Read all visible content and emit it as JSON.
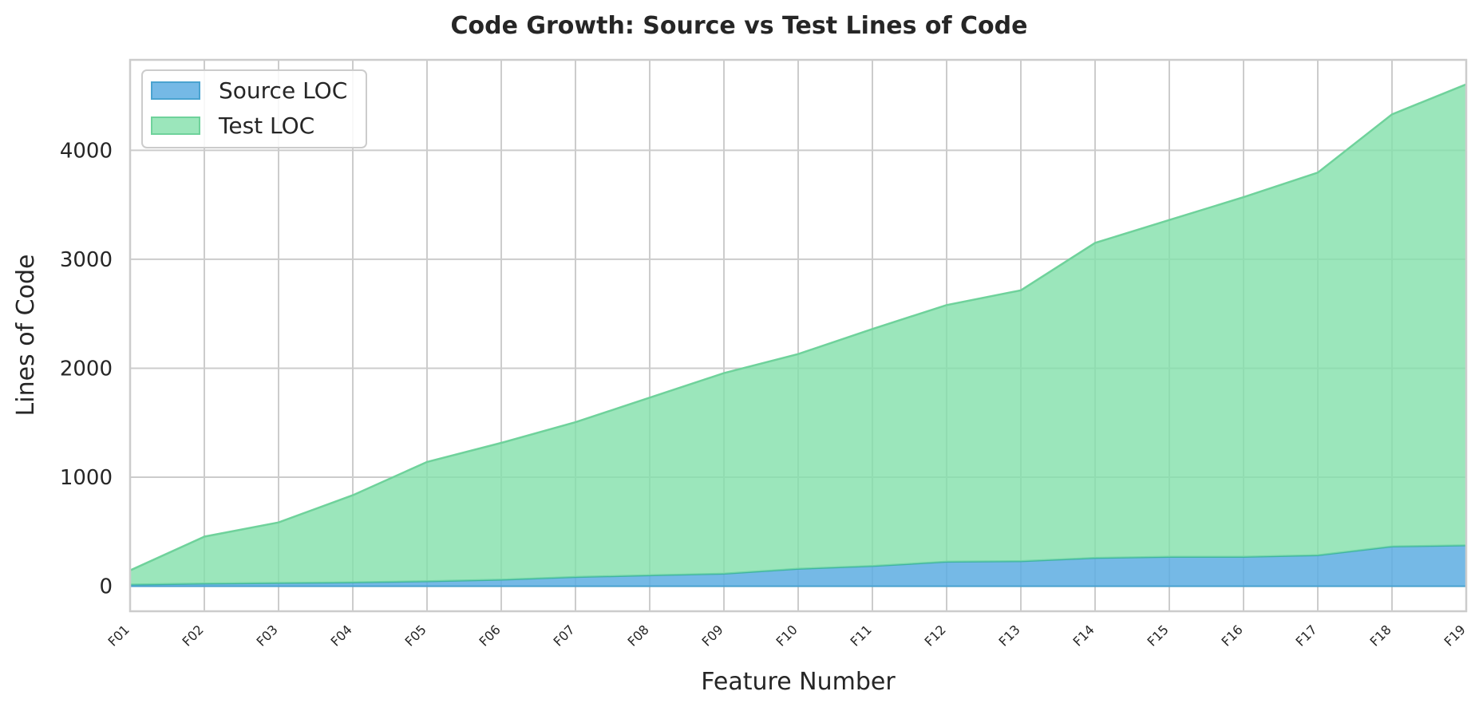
{
  "chart_data": {
    "type": "area",
    "title": "Code Growth: Source vs Test Lines of Code",
    "xlabel": "Feature Number",
    "ylabel": "Lines of Code",
    "categories": [
      "F01",
      "F02",
      "F03",
      "F04",
      "F05",
      "F06",
      "F07",
      "F08",
      "F09",
      "F10",
      "F11",
      "F12",
      "F13",
      "F14",
      "F15",
      "F16",
      "F17",
      "F18",
      "F19"
    ],
    "stacked": true,
    "ylim": [
      -230,
      4830
    ],
    "yticks": [
      0,
      1000,
      2000,
      3000,
      4000
    ],
    "grid": true,
    "legend_position": "top-left",
    "series": [
      {
        "name": "Source LOC",
        "color": "#5dade2",
        "values": [
          15,
          25,
          30,
          35,
          45,
          60,
          85,
          100,
          115,
          160,
          185,
          225,
          230,
          260,
          270,
          270,
          285,
          365,
          375
        ]
      },
      {
        "name": "Test LOC",
        "color": "#82e0aa",
        "values": [
          130,
          430,
          555,
          800,
          1095,
          1255,
          1420,
          1630,
          1840,
          1970,
          2175,
          2355,
          2485,
          2890,
          3090,
          3300,
          3510,
          3965,
          4230
        ]
      }
    ]
  }
}
